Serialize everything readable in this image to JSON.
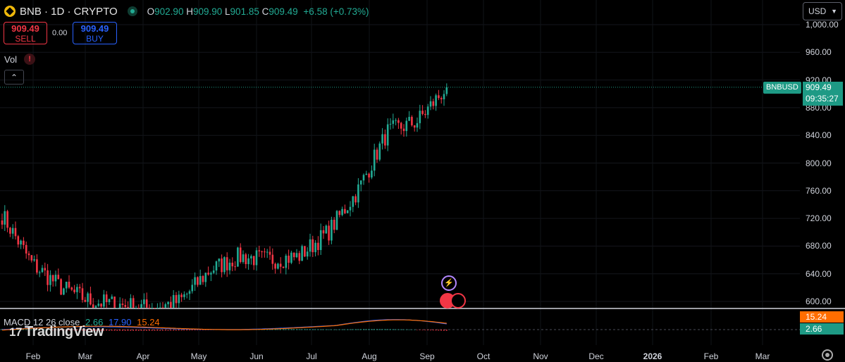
{
  "header": {
    "symbol": "BNB · 1D · CRYPTO",
    "ohlc": {
      "o_label": "O",
      "o": "902.90",
      "h_label": "H",
      "h": "909.90",
      "l_label": "L",
      "l": "901.85",
      "c_label": "C",
      "c": "909.49",
      "change": "+6.58 (+0.73%)"
    }
  },
  "trade": {
    "sell_price": "909.49",
    "sell_label": "SELL",
    "spread": "0.00",
    "buy_price": "909.49",
    "buy_label": "BUY"
  },
  "vol_label": "Vol",
  "vol_warning": "!",
  "currency": "USD",
  "price_tag": {
    "symbol": "BNBUSD",
    "price": "909.49",
    "countdown": "09:35:27"
  },
  "macd": {
    "label": "MACD 12 26 close",
    "histogram": "2.66",
    "macd": "17.90",
    "signal": "15.24"
  },
  "brand": "TradingView",
  "colors": {
    "up": "#22ab94",
    "down": "#f23645",
    "macd": "#2962ff",
    "signal": "#ff6d00",
    "background": "#000000"
  },
  "chart_data": {
    "type": "candlestick",
    "y_ticks": [
      "1,000.00",
      "960.00",
      "920.00",
      "880.00",
      "840.00",
      "800.00",
      "760.00",
      "720.00",
      "680.00",
      "640.00",
      "600.00"
    ],
    "x_ticks": [
      "Feb",
      "Mar",
      "Apr",
      "May",
      "Jun",
      "Jul",
      "Aug",
      "Sep",
      "Oct",
      "Nov",
      "Dec",
      "2026",
      "Feb",
      "Mar"
    ],
    "ylim": [
      585,
      1000
    ],
    "last_price": 909.49,
    "close_by_period": [
      {
        "period": "Feb start",
        "close": 725
      },
      {
        "period": "Feb mid",
        "close": 655
      },
      {
        "period": "Mar start",
        "close": 620
      },
      {
        "period": "Mar mid",
        "close": 600
      },
      {
        "period": "Apr start",
        "close": 595
      },
      {
        "period": "Apr mid",
        "close": 590
      },
      {
        "period": "May start",
        "close": 600
      },
      {
        "period": "May mid",
        "close": 645
      },
      {
        "period": "Jun start",
        "close": 665
      },
      {
        "period": "Jun mid",
        "close": 660
      },
      {
        "period": "Jul start",
        "close": 665
      },
      {
        "period": "Jul mid",
        "close": 700
      },
      {
        "period": "Aug start",
        "close": 760
      },
      {
        "period": "Aug mid",
        "close": 845
      },
      {
        "period": "Sep start",
        "close": 860
      },
      {
        "period": "Sep mid",
        "close": 909.49
      }
    ]
  }
}
